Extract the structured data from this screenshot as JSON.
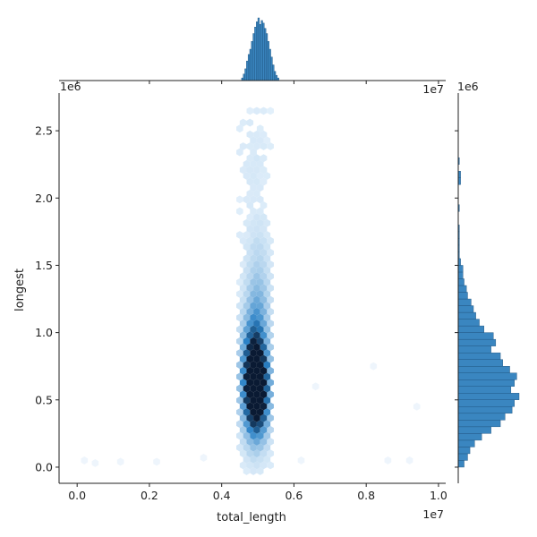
{
  "chart_data": {
    "type": "hexbin-jointplot",
    "xlabel": "total_length",
    "ylabel": "longest",
    "x_offset_text": "1e7",
    "y_offset_text": "1e6",
    "xlim": [
      -0.05,
      1.02
    ],
    "ylim": [
      -0.12,
      2.78
    ],
    "x_ticks": [
      0.0,
      0.2,
      0.4,
      0.6,
      0.8,
      1.0
    ],
    "x_tick_labels": [
      "0.0",
      "0.2",
      "0.4",
      "0.6",
      "0.8",
      "1.0"
    ],
    "y_ticks": [
      0.0,
      0.5,
      1.0,
      1.5,
      2.0,
      2.5
    ],
    "y_tick_labels": [
      "0.0",
      "0.5",
      "1.0",
      "1.5",
      "2.0",
      "2.5"
    ],
    "colors": {
      "hex_dark": "#0a1a33",
      "hex_mid": "#2b82c6",
      "hex_light": "#e3f0fb",
      "hist": "#3a86c0",
      "hist_edge": "#1b4f7a"
    },
    "hex_x_range": [
      0.45,
      0.54
    ],
    "hex_y_range": [
      -0.03,
      2.65
    ],
    "hex_density_peaks": [
      {
        "x": 0.495,
        "y": 0.5,
        "level": 1.0
      },
      {
        "x": 0.495,
        "y": 0.65,
        "level": 0.9
      },
      {
        "x": 0.49,
        "y": 0.85,
        "level": 0.55
      },
      {
        "x": 0.5,
        "y": 1.2,
        "level": 0.25
      },
      {
        "x": 0.5,
        "y": 1.6,
        "level": 0.08
      },
      {
        "x": 0.49,
        "y": 2.3,
        "level": 0.03
      }
    ],
    "sparse_outliers": [
      {
        "x": 0.02,
        "y": 0.05
      },
      {
        "x": 0.05,
        "y": 0.03
      },
      {
        "x": 0.12,
        "y": 0.04
      },
      {
        "x": 0.22,
        "y": 0.04
      },
      {
        "x": 0.35,
        "y": 0.07
      },
      {
        "x": 0.62,
        "y": 0.05
      },
      {
        "x": 0.66,
        "y": 0.6
      },
      {
        "x": 0.86,
        "y": 0.05
      },
      {
        "x": 0.92,
        "y": 0.05
      },
      {
        "x": 0.94,
        "y": 0.45
      },
      {
        "x": 0.82,
        "y": 0.75
      }
    ],
    "top_hist": {
      "bin_start": 0.455,
      "bin_width": 0.0045,
      "counts": [
        2,
        5,
        9,
        15,
        20,
        24,
        30,
        36,
        41,
        45,
        48,
        43,
        46,
        44,
        40,
        36,
        30,
        24,
        18,
        12,
        7,
        4,
        2
      ]
    },
    "right_hist": {
      "bin_start": 0.0,
      "bin_width": 0.05,
      "counts": [
        5,
        8,
        10,
        14,
        20,
        28,
        36,
        40,
        46,
        48,
        52,
        45,
        48,
        50,
        44,
        38,
        36,
        28,
        32,
        30,
        22,
        18,
        15,
        13,
        11,
        8,
        7,
        5,
        4,
        4,
        2,
        1,
        1,
        1,
        1,
        1,
        0,
        0,
        1,
        0,
        0,
        0,
        2,
        2,
        0,
        1,
        0,
        0,
        0,
        0
      ]
    }
  }
}
